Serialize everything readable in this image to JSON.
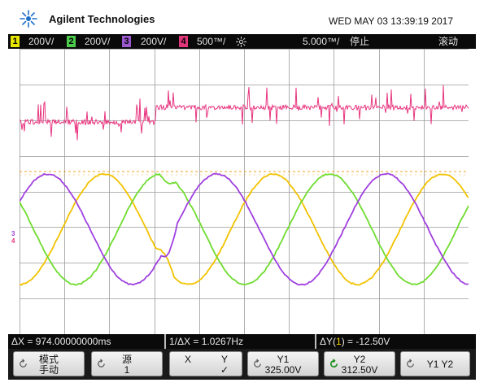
{
  "header": {
    "brand": "Agilent Technologies",
    "datetime": "WED MAY 03 13:39:19 2017"
  },
  "status": {
    "channels": [
      {
        "num": "1",
        "scale": "200V/",
        "color": "#e6e600"
      },
      {
        "num": "2",
        "scale": "200V/",
        "color": "#4ccc4c"
      },
      {
        "num": "3",
        "scale": "200V/",
        "color": "#9b59d0"
      },
      {
        "num": "4",
        "scale": "500™/",
        "color": "#e0357a"
      }
    ],
    "trigger_icon": "sun-trigger-icon",
    "timebase": "5.000™/",
    "run_state": "停止",
    "mode": "滚动"
  },
  "markers": {
    "ch3": "3",
    "ch4": "4"
  },
  "info": {
    "delta_x": "ΔX = 974.00000000ms",
    "inv_delta_x": "1/ΔX = 1.0267Hz",
    "delta_y_prefix": "ΔY(",
    "delta_y_channel": "1",
    "delta_y_suffix": ") = -12.50V"
  },
  "softkeys": [
    {
      "l1": "模式",
      "l2": "手动"
    },
    {
      "l1": "源",
      "l2": "1"
    },
    {
      "l1": "X",
      "l2": ""
    },
    {
      "l1": "Y",
      "l2": "✓"
    },
    {
      "l1": "Y1",
      "l2": "325.00V"
    },
    {
      "l1": "Y2",
      "l2": "312.50V"
    },
    {
      "l1": "Y1 Y2",
      "l2": ""
    }
  ],
  "colors": {
    "ch1": "#f2c200",
    "ch2": "#6fdc2f",
    "ch3": "#a040e0",
    "ch4": "#e8357f",
    "grid": "#9a9a9a"
  }
}
